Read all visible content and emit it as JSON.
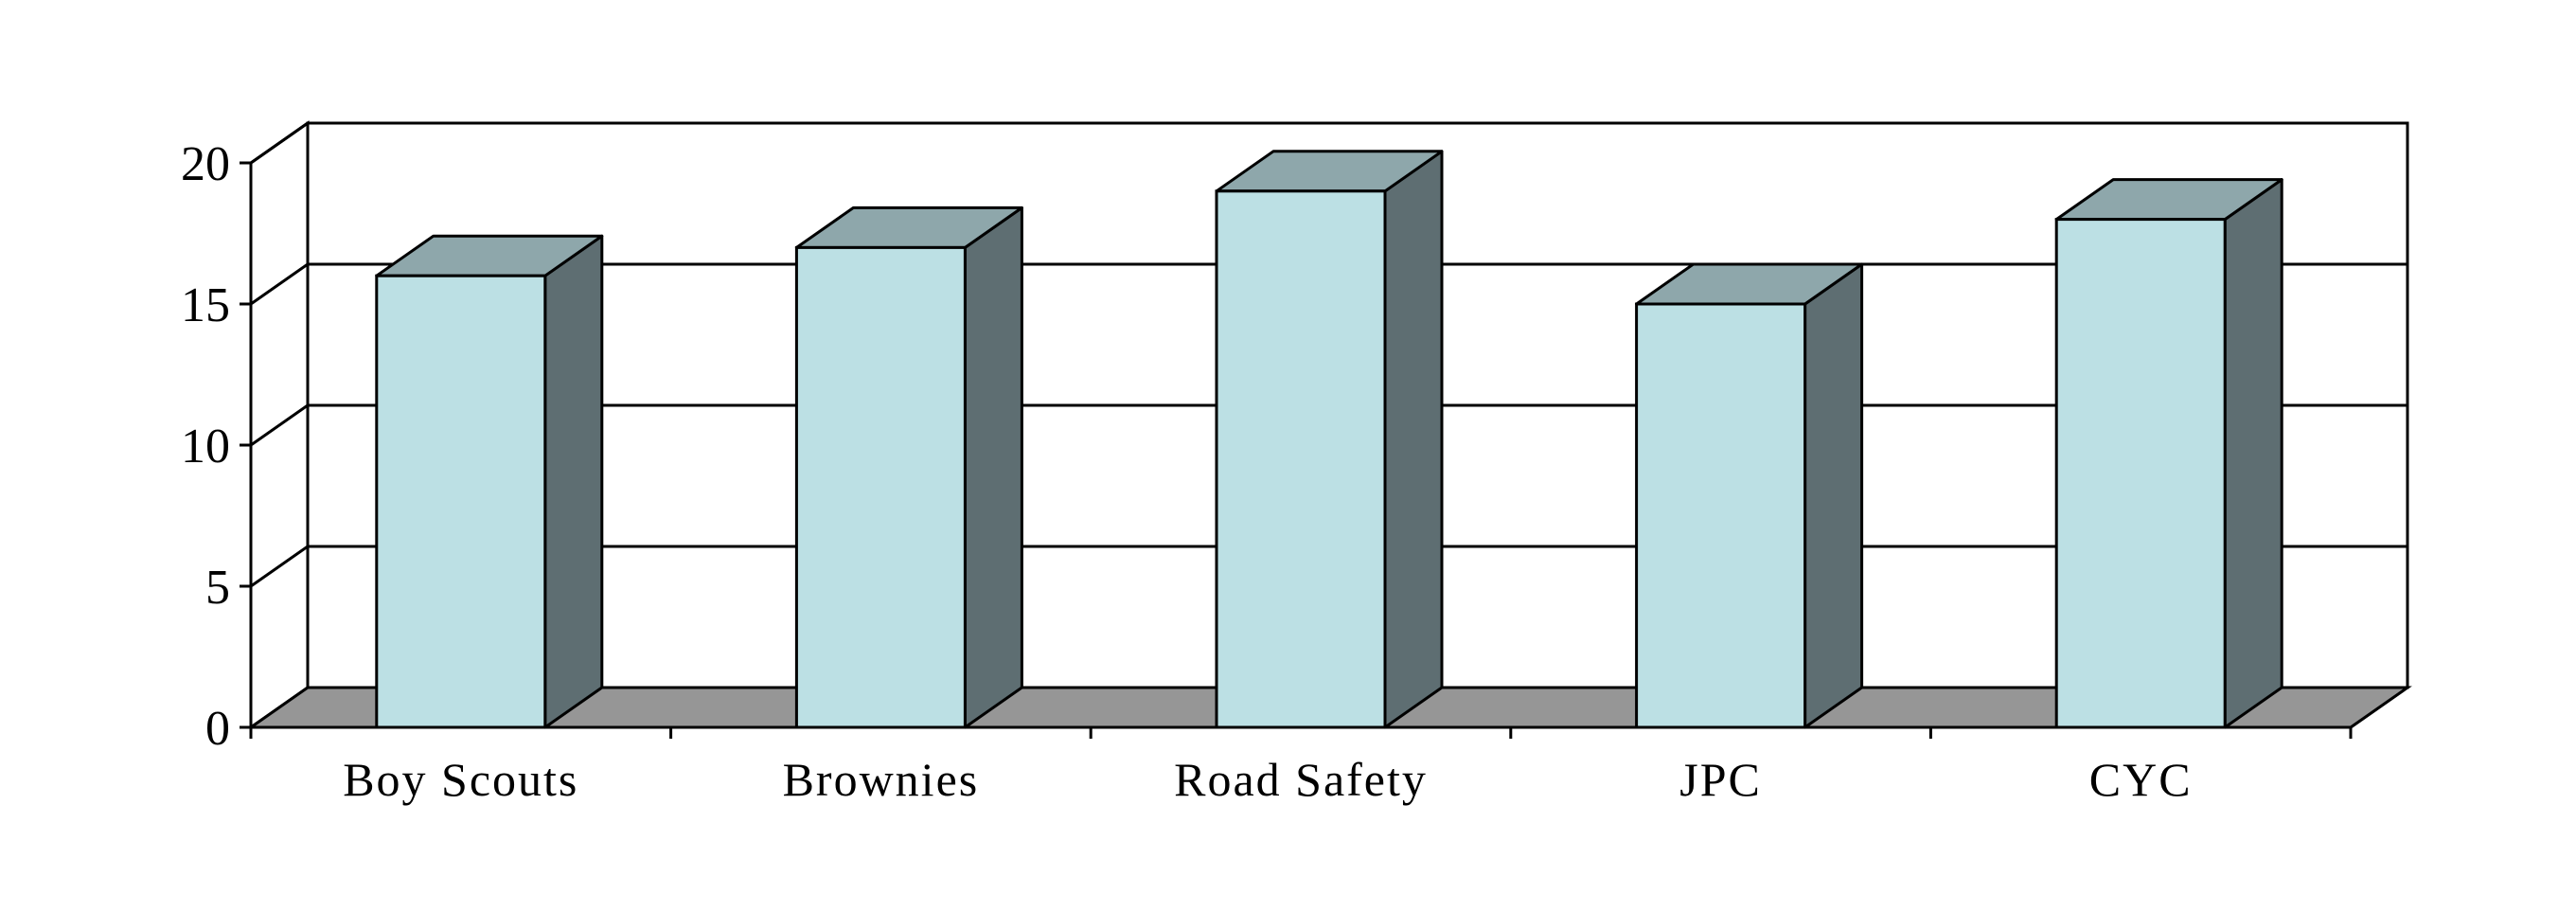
{
  "chart_data": {
    "type": "bar",
    "style": "3d",
    "title": "",
    "xlabel": "",
    "ylabel": "",
    "categories": [
      "Boy Scouts",
      "Brownies",
      "Road Safety",
      "JPC",
      "CYC"
    ],
    "series": [
      {
        "values": [
          16,
          17,
          19,
          15,
          18
        ]
      }
    ],
    "ylim": [
      0,
      20
    ],
    "yticks": [
      "0",
      "5",
      "10",
      "15",
      "20"
    ],
    "grid": true,
    "legend": "none",
    "colors": {
      "bar_front": "#BCE0E4",
      "bar_top": "#8EA7AB",
      "bar_side": "#5E6E72",
      "floor": "#969696",
      "line": "#000000"
    }
  }
}
